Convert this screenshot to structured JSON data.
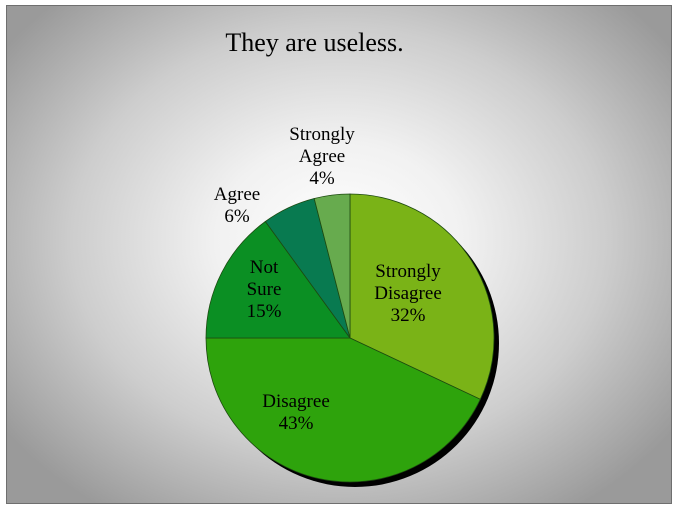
{
  "chart_data": {
    "type": "pie",
    "title": "They are useless.",
    "slices": [
      {
        "label": "Strongly Disagree",
        "value": 32,
        "value_label": "32%",
        "color": "#7ab317"
      },
      {
        "label": "Disagree",
        "value": 43,
        "value_label": "43%",
        "color": "#2ea30c"
      },
      {
        "label": "Not Sure",
        "value": 15,
        "value_label": "15%",
        "color": "#0b8f23"
      },
      {
        "label": "Agree",
        "value": 6,
        "value_label": "6%",
        "color": "#087a50"
      },
      {
        "label": "Strongly Agree",
        "value": 4,
        "value_label": "4%",
        "color": "#67ab4e"
      }
    ],
    "legend": "none"
  }
}
